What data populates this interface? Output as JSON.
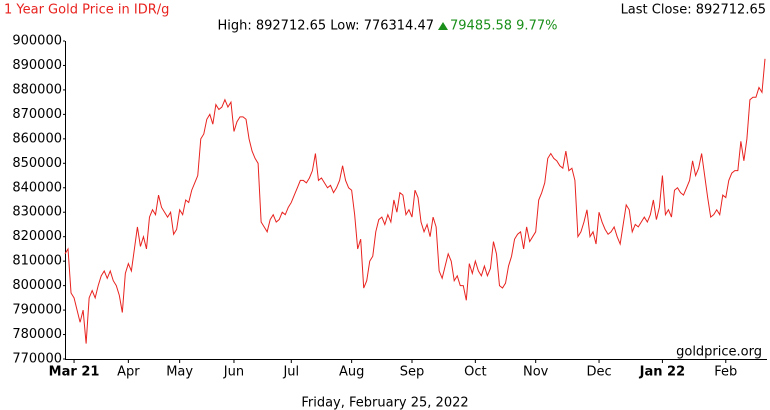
{
  "chart_data": {
    "type": "line",
    "title": "1 Year Gold Price in IDR/g",
    "stats": "High: 892712.65 Low: 776314.47",
    "change": "79485.58 9.77%",
    "last_close": "Last Close: 892712.65",
    "watermark": "goldprice.org",
    "date": "Friday, February 25, 2022",
    "series": [
      {
        "color": "#e8231f",
        "values": [
          813000,
          815000,
          797000,
          795000,
          790000,
          785000,
          790000,
          776314.47,
          795000,
          798000,
          795000,
          800000,
          804000,
          806000,
          803000,
          806000,
          802000,
          800000,
          796000,
          789000,
          805000,
          809000,
          806000,
          815000,
          824000,
          816000,
          820000,
          815000,
          828000,
          831000,
          829000,
          837000,
          832000,
          830000,
          828000,
          830000,
          821000,
          823000,
          831000,
          829000,
          835000,
          834000,
          839000,
          842000,
          845000,
          860000,
          862000,
          868000,
          870000,
          866000,
          874000,
          872000,
          873000,
          876000,
          873000,
          875000,
          863000,
          867000,
          869000,
          869000,
          868000,
          860000,
          855000,
          852000,
          850000,
          826000,
          824000,
          822000,
          827000,
          829000,
          826000,
          827000,
          830000,
          829000,
          832000,
          834000,
          837000,
          840000,
          843000,
          843000,
          842000,
          844000,
          847000,
          854000,
          843000,
          844000,
          842000,
          840000,
          841000,
          838000,
          840000,
          843000,
          849000,
          843000,
          840000,
          839000,
          829000,
          815000,
          819000,
          799000,
          802000,
          810000,
          812000,
          822000,
          827000,
          828000,
          825000,
          829000,
          826000,
          835000,
          830000,
          838000,
          837000,
          829000,
          831000,
          828000,
          839000,
          836000,
          826000,
          822000,
          825000,
          820000,
          828000,
          824000,
          806000,
          803000,
          808000,
          813000,
          810000,
          802000,
          804000,
          800000,
          800000,
          794000,
          809000,
          805000,
          810000,
          806000,
          804000,
          808000,
          804000,
          807000,
          818000,
          813000,
          800000,
          799000,
          801000,
          808000,
          812000,
          819000,
          821000,
          822000,
          815000,
          824000,
          818000,
          820000,
          822000,
          835000,
          838000,
          842000,
          852000,
          854000,
          852000,
          851000,
          849000,
          848000,
          855000,
          847000,
          848000,
          843000,
          820000,
          822000,
          826000,
          831000,
          820000,
          822000,
          817000,
          830000,
          826000,
          823000,
          821000,
          822000,
          824000,
          820000,
          817000,
          825000,
          833000,
          831000,
          822000,
          825000,
          824000,
          826000,
          828000,
          826000,
          829000,
          835000,
          827000,
          832000,
          845000,
          829000,
          831000,
          828000,
          839000,
          840000,
          838000,
          837000,
          840000,
          843000,
          851000,
          845000,
          848000,
          854000,
          845000,
          836000,
          828000,
          829000,
          831000,
          829000,
          837000,
          836000,
          843000,
          846000,
          847000,
          847000,
          859000,
          851000,
          860000,
          876000,
          877000,
          877000,
          881000,
          879000,
          892712.65
        ]
      }
    ],
    "xlim": [
      0,
      232
    ],
    "xticks": [
      {
        "value": 3,
        "label": "Mar 21"
      },
      {
        "value": 21,
        "label": "Apr"
      },
      {
        "value": 38,
        "label": "May"
      },
      {
        "value": 56,
        "label": "Jun"
      },
      {
        "value": 75,
        "label": "Jul"
      },
      {
        "value": 95,
        "label": "Aug"
      },
      {
        "value": 115,
        "label": "Sep"
      },
      {
        "value": 136,
        "label": "Oct"
      },
      {
        "value": 156,
        "label": "Nov"
      },
      {
        "value": 177,
        "label": "Dec"
      },
      {
        "value": 198,
        "label": "Jan 22"
      },
      {
        "value": 219,
        "label": "Feb"
      }
    ],
    "ylim": [
      770000,
      900000
    ],
    "yticks": [
      770000,
      780000,
      790000,
      800000,
      810000,
      820000,
      830000,
      840000,
      850000,
      860000,
      870000,
      880000,
      890000,
      900000
    ],
    "grid": false
  }
}
